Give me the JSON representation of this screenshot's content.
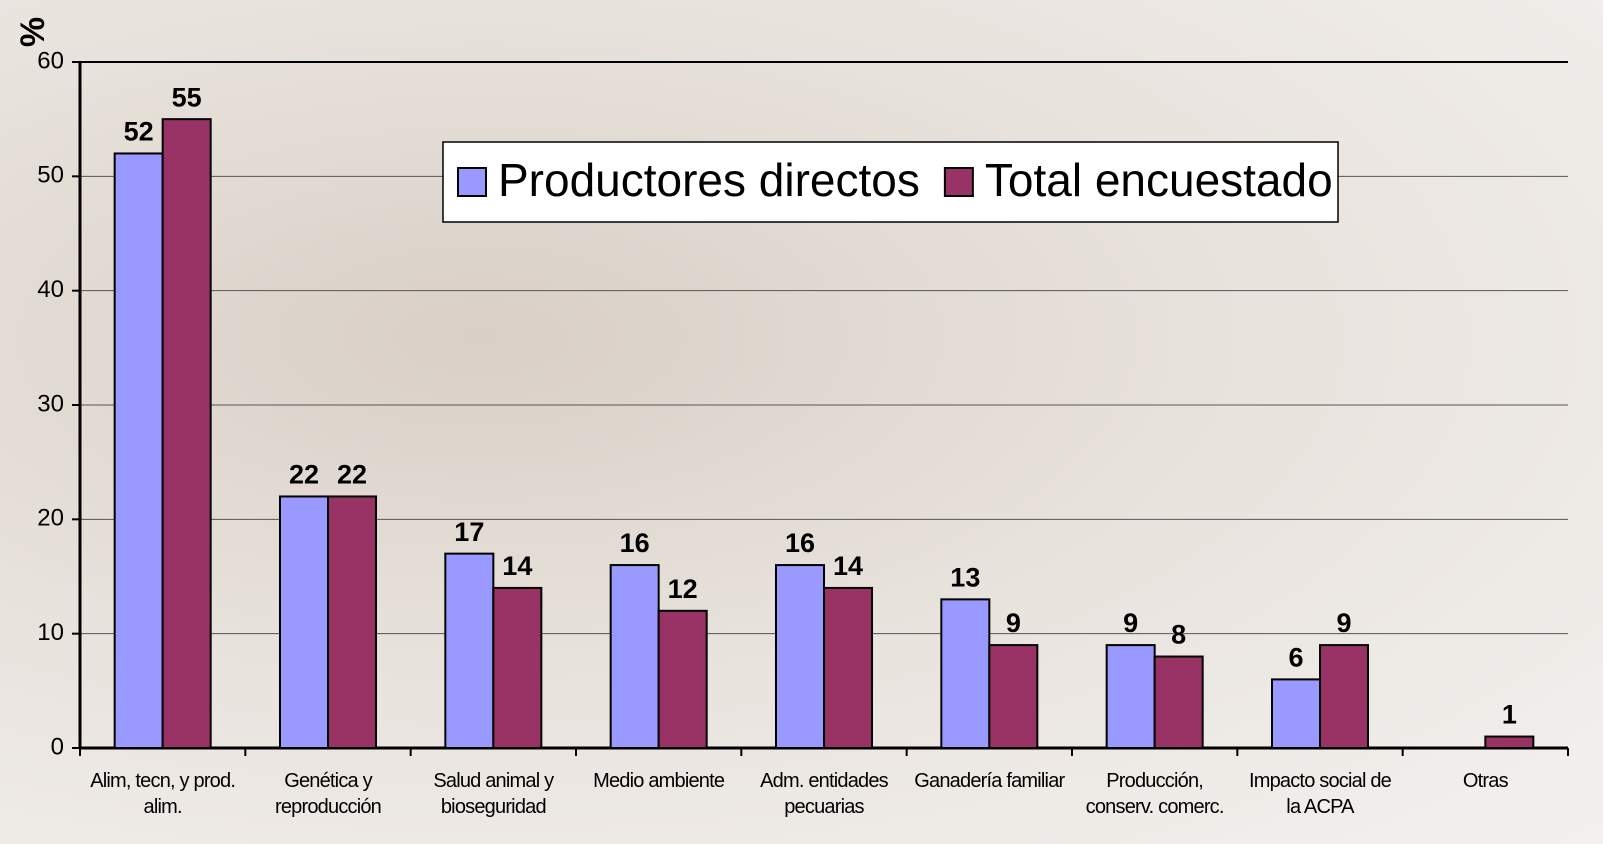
{
  "chart_data": {
    "type": "bar",
    "y_label": "%",
    "categories": [
      "Alim, tecn, y prod. alim.",
      "Genética y reproducción",
      "Salud animal y bioseguridad",
      "Medio ambiente",
      "Adm. entidades pecuarias",
      "Ganadería familiar",
      "Producción, conserv. comerc.",
      "Impacto social de la ACPA",
      "Otras"
    ],
    "series": [
      {
        "name": "Productores directos",
        "color": "#9999ff",
        "values": [
          52,
          22,
          17,
          16,
          16,
          13,
          9,
          6,
          null
        ]
      },
      {
        "name": "Total encuestado",
        "color": "#993366",
        "values": [
          55,
          22,
          14,
          12,
          14,
          9,
          8,
          9,
          1
        ]
      }
    ],
    "ylim": [
      0,
      60
    ],
    "yticks": [
      0,
      10,
      20,
      30,
      40,
      50,
      60
    ],
    "grid": true,
    "legend": "top"
  }
}
